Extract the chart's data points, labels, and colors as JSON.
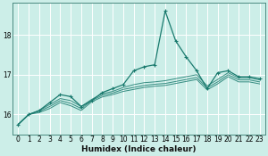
{
  "xlabel": "Humidex (Indice chaleur)",
  "bg_color": "#cceee8",
  "grid_color": "#ffffff",
  "line_color": "#1a7a6e",
  "xlim": [
    -0.5,
    23.5
  ],
  "ylim": [
    15.5,
    18.8
  ],
  "yticks": [
    16,
    17,
    18
  ],
  "xtick_labels": [
    "0",
    "1",
    "2",
    "3",
    "4",
    "5",
    "6",
    "7",
    "8",
    "9",
    "10",
    "11",
    "12",
    "13",
    "14",
    "15",
    "16",
    "17",
    "18",
    "19",
    "20",
    "21",
    "22",
    "23"
  ],
  "series_main": [
    15.75,
    16.0,
    16.1,
    16.3,
    16.5,
    16.45,
    16.2,
    16.35,
    16.55,
    16.65,
    16.75,
    17.1,
    17.2,
    17.25,
    18.6,
    17.85,
    17.45,
    17.1,
    16.65,
    17.05,
    17.1,
    16.95,
    16.95,
    16.9
  ],
  "series_smooth1": [
    15.75,
    16.0,
    16.1,
    16.25,
    16.4,
    16.35,
    16.2,
    16.38,
    16.52,
    16.58,
    16.68,
    16.75,
    16.8,
    16.82,
    16.85,
    16.9,
    16.95,
    17.0,
    16.72,
    16.88,
    17.05,
    16.92,
    16.92,
    16.87
  ],
  "series_smooth2": [
    15.75,
    16.0,
    16.08,
    16.2,
    16.35,
    16.28,
    16.15,
    16.35,
    16.48,
    16.54,
    16.63,
    16.68,
    16.73,
    16.76,
    16.78,
    16.83,
    16.88,
    16.93,
    16.67,
    16.82,
    17.0,
    16.87,
    16.87,
    16.82
  ],
  "series_smooth3": [
    15.75,
    16.0,
    16.05,
    16.15,
    16.3,
    16.22,
    16.1,
    16.32,
    16.44,
    16.5,
    16.58,
    16.63,
    16.68,
    16.71,
    16.73,
    16.78,
    16.83,
    16.88,
    16.62,
    16.77,
    16.95,
    16.82,
    16.82,
    16.77
  ]
}
